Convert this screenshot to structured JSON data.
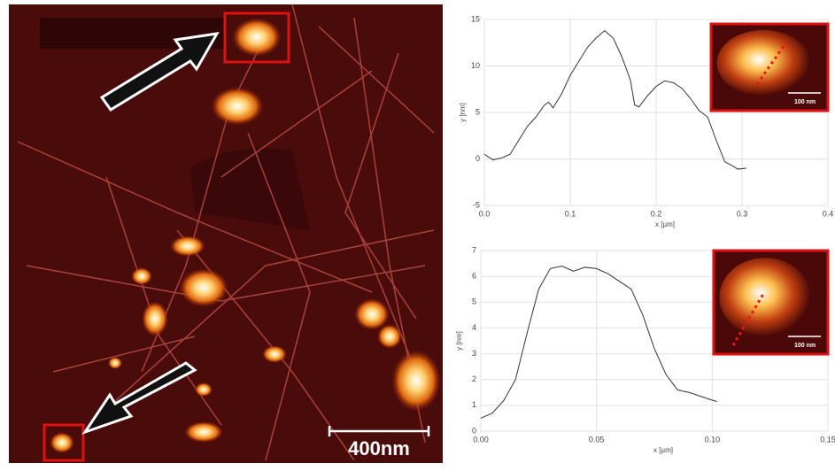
{
  "image": {
    "scale_bar_label": "400nm"
  },
  "chart_data": [
    {
      "type": "line",
      "x_label": "x [µm]",
      "y_label": "y [nm]",
      "inset_scale_label": "100 nm",
      "x": [
        0,
        0.01,
        0.02,
        0.03,
        0.04,
        0.05,
        0.06,
        0.07,
        0.075,
        0.08,
        0.09,
        0.1,
        0.11,
        0.12,
        0.13,
        0.14,
        0.15,
        0.16,
        0.17,
        0.175,
        0.18,
        0.19,
        0.2,
        0.21,
        0.22,
        0.23,
        0.24,
        0.25,
        0.26,
        0.27,
        0.28,
        0.29,
        0.295,
        0.305
      ],
      "series": [
        {
          "color": "#333333",
          "values": [
            0.5,
            -0.1,
            0.1,
            0.5,
            2,
            3.5,
            4.5,
            5.8,
            6.1,
            5.5,
            7,
            9,
            10.5,
            12,
            13,
            13.8,
            13,
            11,
            8.5,
            5.8,
            5.6,
            6.8,
            7.8,
            8.4,
            8.2,
            7.6,
            6.5,
            5.2,
            4.5,
            2,
            -0.3,
            -0.8,
            -1.1,
            -1.0
          ]
        }
      ],
      "xlim": [
        0,
        0.4
      ],
      "xticks": [
        {
          "value": 0,
          "label": "0.0"
        },
        0.1,
        0.2,
        0.3,
        0.4
      ],
      "ylim": [
        -5,
        15
      ],
      "yticks": [
        -5,
        0,
        5,
        10,
        15
      ],
      "grid": true
    },
    {
      "type": "line",
      "x_label": "x [µm]",
      "y_label": "y [nm]",
      "inset_scale_label": "100 nm",
      "x": [
        0,
        0.005,
        0.01,
        0.015,
        0.02,
        0.025,
        0.03,
        0.035,
        0.04,
        0.045,
        0.05,
        0.055,
        0.06,
        0.065,
        0.07,
        0.075,
        0.08,
        0.085,
        0.09,
        0.095,
        0.1,
        0.102
      ],
      "series": [
        {
          "color": "#333333",
          "values": [
            0.5,
            0.7,
            1.2,
            2,
            3.8,
            5.5,
            6.3,
            6.4,
            6.2,
            6.35,
            6.3,
            6.1,
            5.8,
            5.5,
            4.5,
            3.2,
            2.2,
            1.6,
            1.5,
            1.35,
            1.2,
            1.15
          ]
        }
      ],
      "xlim": [
        0,
        0.15
      ],
      "xticks": [
        {
          "value": 0,
          "label": "0.00"
        },
        0.05,
        {
          "value": 0.1,
          "label": "0.10"
        },
        0.15
      ],
      "ylim": [
        0,
        7
      ],
      "yticks": [
        0,
        1,
        2,
        3,
        4,
        5,
        6,
        7
      ],
      "grid": true
    }
  ]
}
